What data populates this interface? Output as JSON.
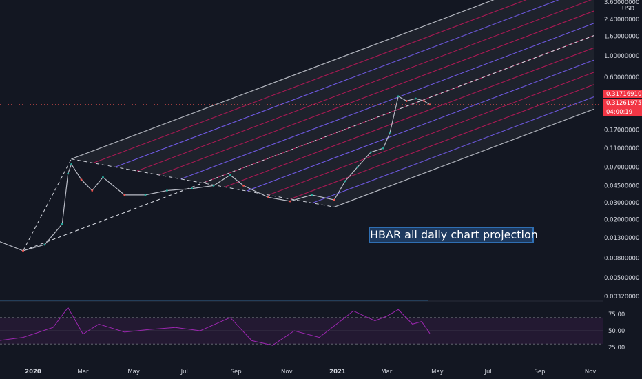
{
  "chart_data": {
    "type": "line",
    "currency": "USD",
    "price_axis_ticks": [
      "3.60000000",
      "2.40000000",
      "1.60000000",
      "1.00000000",
      "0.60000000",
      "0.17000000",
      "0.11000000",
      "0.07000000",
      "0.04500000",
      "0.03000000",
      "0.02000000",
      "0.01300000",
      "0.00800000",
      "0.00500000",
      "0.00320000"
    ],
    "price_tags": [
      {
        "label": "0.31716910",
        "color": "#f23645"
      },
      {
        "label": "0.31261975",
        "color": "#f23645"
      },
      {
        "label": "04:00:19",
        "color": "#f23645"
      }
    ],
    "time_axis_ticks": [
      {
        "label": "2020",
        "bold": true
      },
      {
        "label": "Mar",
        "bold": false
      },
      {
        "label": "May",
        "bold": false
      },
      {
        "label": "Jul",
        "bold": false
      },
      {
        "label": "Sep",
        "bold": false
      },
      {
        "label": "Nov",
        "bold": false
      },
      {
        "label": "2021",
        "bold": true
      },
      {
        "label": "Mar",
        "bold": false
      },
      {
        "label": "May",
        "bold": false
      },
      {
        "label": "Jul",
        "bold": false
      },
      {
        "label": "Sep",
        "bold": false
      },
      {
        "label": "Nov",
        "bold": false
      }
    ],
    "rsi_axis_ticks": [
      "75.00",
      "50.00",
      "25.00"
    ],
    "rsi_levels": [
      70,
      50,
      30
    ],
    "price_series": [
      {
        "date": "2019-10-01",
        "value": 0.026
      },
      {
        "date": "2019-11-01",
        "value": 0.02
      },
      {
        "date": "2019-11-20",
        "value": 0.012
      },
      {
        "date": "2019-12-20",
        "value": 0.0095
      },
      {
        "date": "2020-01-15",
        "value": 0.011
      },
      {
        "date": "2020-02-05",
        "value": 0.018
      },
      {
        "date": "2020-02-12",
        "value": 0.06
      },
      {
        "date": "2020-02-16",
        "value": 0.075
      },
      {
        "date": "2020-02-28",
        "value": 0.052
      },
      {
        "date": "2020-03-12",
        "value": 0.04
      },
      {
        "date": "2020-03-25",
        "value": 0.055
      },
      {
        "date": "2020-04-20",
        "value": 0.036
      },
      {
        "date": "2020-05-15",
        "value": 0.036
      },
      {
        "date": "2020-06-10",
        "value": 0.04
      },
      {
        "date": "2020-07-10",
        "value": 0.042
      },
      {
        "date": "2020-08-05",
        "value": 0.045
      },
      {
        "date": "2020-08-25",
        "value": 0.058
      },
      {
        "date": "2020-09-10",
        "value": 0.045
      },
      {
        "date": "2020-10-10",
        "value": 0.034
      },
      {
        "date": "2020-11-05",
        "value": 0.031
      },
      {
        "date": "2020-12-01",
        "value": 0.036
      },
      {
        "date": "2020-12-28",
        "value": 0.032
      },
      {
        "date": "2021-01-10",
        "value": 0.05
      },
      {
        "date": "2021-01-25",
        "value": 0.07
      },
      {
        "date": "2021-02-10",
        "value": 0.1
      },
      {
        "date": "2021-02-25",
        "value": 0.11
      },
      {
        "date": "2021-03-05",
        "value": 0.16
      },
      {
        "date": "2021-03-15",
        "value": 0.38
      },
      {
        "date": "2021-03-25",
        "value": 0.34
      },
      {
        "date": "2021-04-05",
        "value": 0.36
      },
      {
        "date": "2021-04-15",
        "value": 0.34
      },
      {
        "date": "2021-04-22",
        "value": 0.312
      }
    ],
    "rsi_series": [
      {
        "date": "2019-10-01",
        "value": 45
      },
      {
        "date": "2019-11-20",
        "value": 35
      },
      {
        "date": "2019-12-20",
        "value": 40
      },
      {
        "date": "2020-01-25",
        "value": 55
      },
      {
        "date": "2020-02-12",
        "value": 85
      },
      {
        "date": "2020-03-01",
        "value": 45
      },
      {
        "date": "2020-03-20",
        "value": 60
      },
      {
        "date": "2020-04-20",
        "value": 48
      },
      {
        "date": "2020-05-20",
        "value": 52
      },
      {
        "date": "2020-06-20",
        "value": 55
      },
      {
        "date": "2020-07-20",
        "value": 50
      },
      {
        "date": "2020-08-25",
        "value": 70
      },
      {
        "date": "2020-09-20",
        "value": 35
      },
      {
        "date": "2020-10-15",
        "value": 28
      },
      {
        "date": "2020-11-10",
        "value": 50
      },
      {
        "date": "2020-12-10",
        "value": 40
      },
      {
        "date": "2021-01-05",
        "value": 65
      },
      {
        "date": "2021-01-20",
        "value": 80
      },
      {
        "date": "2021-02-15",
        "value": 65
      },
      {
        "date": "2021-03-01",
        "value": 72
      },
      {
        "date": "2021-03-15",
        "value": 82
      },
      {
        "date": "2021-04-01",
        "value": 60
      },
      {
        "date": "2021-04-12",
        "value": 64
      },
      {
        "date": "2021-04-22",
        "value": 46
      }
    ],
    "annotation": "HBAR all daily chart projection",
    "colors": {
      "background": "#131722",
      "up": "#26a69a",
      "down": "#ef5350",
      "channel": "#b2b5be",
      "fan_red": "#c2185b",
      "fan_blue": "#7b61ff",
      "rsi": "#9c27b0",
      "volume_up": "#1e6b48",
      "volume_down": "#1f4e79"
    }
  }
}
